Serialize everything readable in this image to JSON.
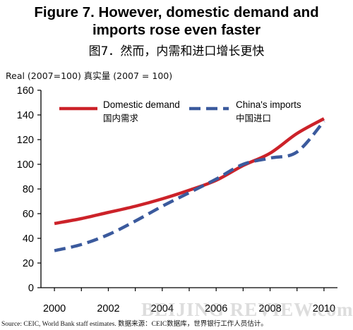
{
  "title": {
    "line1": "Figure 7. However, domestic demand and",
    "line2": "imports rose even faster",
    "zh": "图7．然而，内需和进口增长更快"
  },
  "source": "Source: CEIC, World Bank staff estimates.      数据来源：CEIC数据库，世界银行工作人员估计。",
  "watermark": "BEIJING REVIEW.com.cn",
  "colors": {
    "domestic": "#cc2229",
    "imports": "#3b5a9d",
    "axis": "#000000"
  },
  "chart_data": {
    "type": "line",
    "ylabel": "Real (2007=100) 真实量 (2007 = 100)",
    "ylim": [
      0,
      160
    ],
    "xlim": [
      1999.5,
      2010.5
    ],
    "yticks": [
      0,
      20,
      40,
      60,
      80,
      100,
      120,
      140,
      160
    ],
    "xticks": [
      2000,
      2002,
      2004,
      2006,
      2008,
      2010
    ],
    "x": [
      2000,
      2001,
      2002,
      2003,
      2004,
      2005,
      2006,
      2007,
      2008,
      2009,
      2010
    ],
    "legend": "top-left, in plot",
    "series": [
      {
        "name": "Domestic demand",
        "name_zh": "国内需求",
        "style": "solid",
        "values": [
          52,
          56,
          61,
          66,
          72,
          79,
          87,
          99,
          109,
          125,
          137
        ]
      },
      {
        "name": "China's imports",
        "name_zh": "中国进口",
        "style": "dashed",
        "values": [
          30,
          35,
          43,
          54,
          66,
          77,
          88,
          100,
          105,
          110,
          135
        ]
      }
    ]
  }
}
